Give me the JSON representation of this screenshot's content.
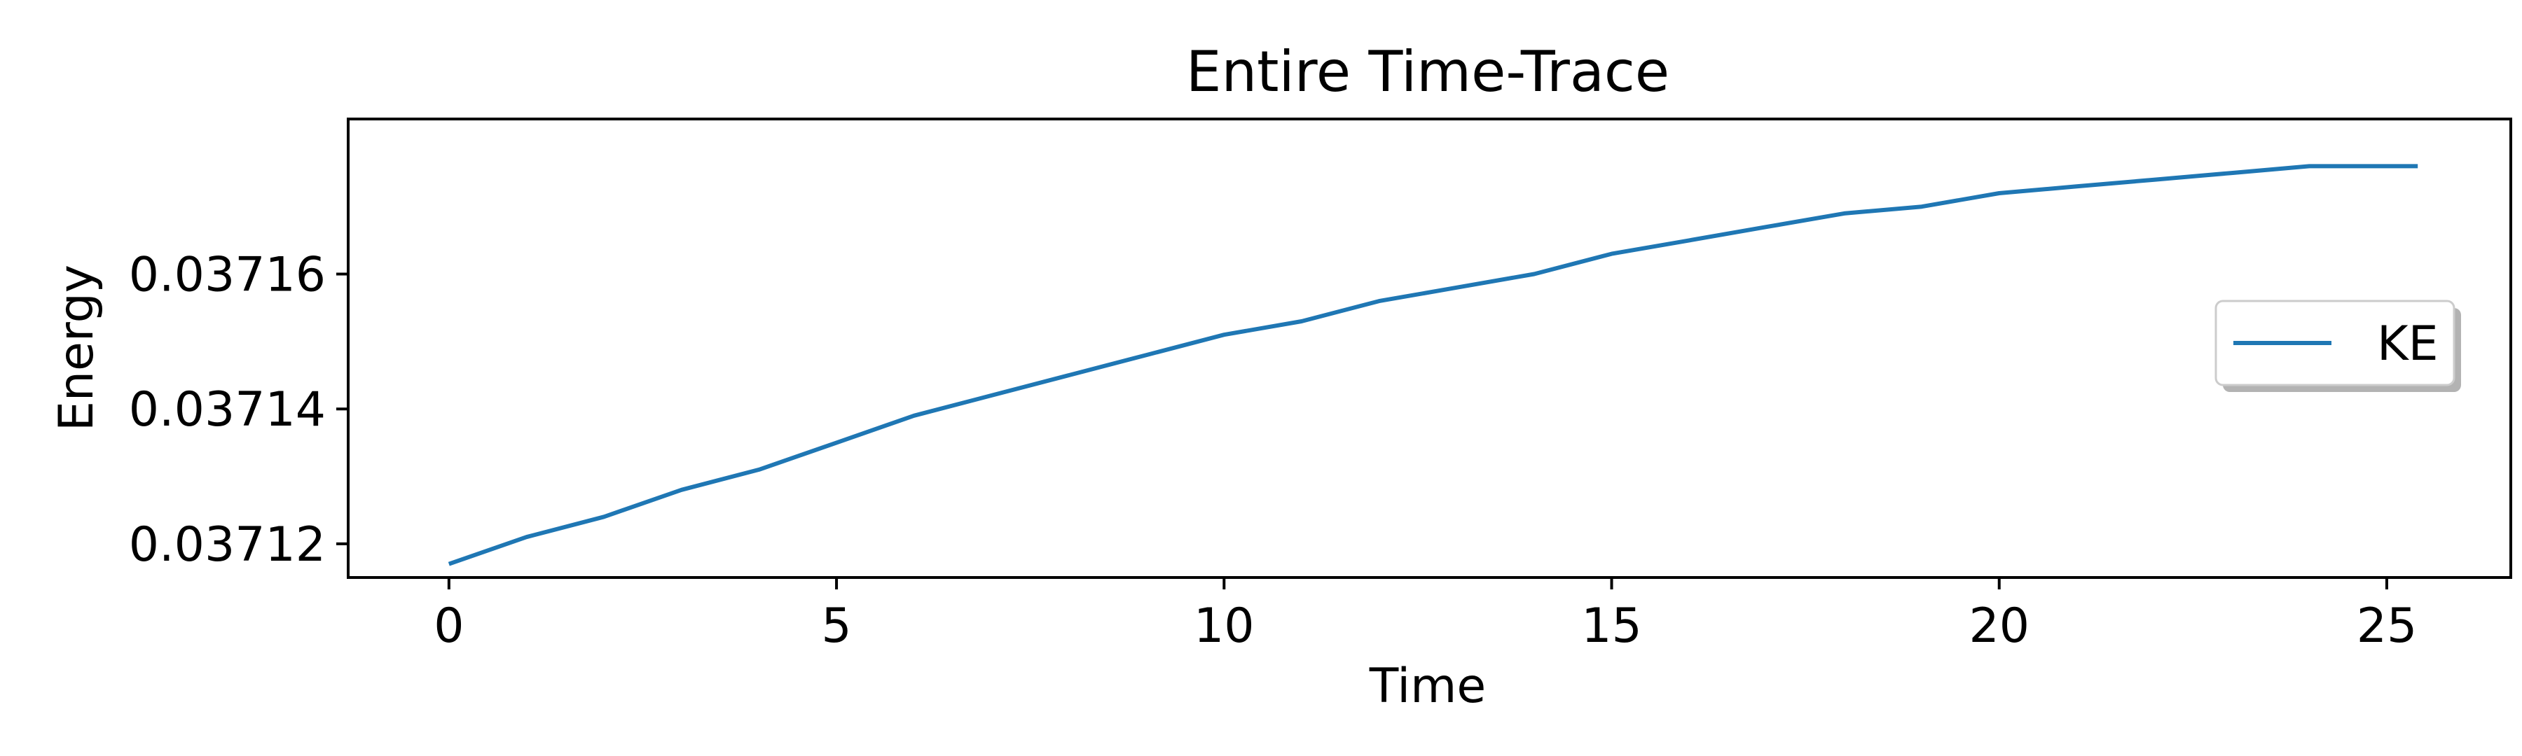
{
  "chart_data": {
    "type": "line",
    "title": "Entire Time-Trace",
    "xlabel": "Time",
    "ylabel": "Energy",
    "xlim": [
      -1.3,
      26.6
    ],
    "ylim": [
      0.037115,
      0.037183
    ],
    "x_ticks": [
      0,
      5,
      10,
      15,
      20,
      25
    ],
    "x_tick_labels": [
      "0",
      "5",
      "10",
      "15",
      "20",
      "25"
    ],
    "y_ticks": [
      0.03712,
      0.03714,
      0.03716
    ],
    "y_tick_labels": [
      "0.03712",
      "0.03714",
      "0.03716"
    ],
    "grid": false,
    "legend": {
      "position": "center-right",
      "entries": [
        "KE"
      ]
    },
    "series": [
      {
        "name": "KE",
        "color": "#1f77b4",
        "x": [
          0,
          1,
          2,
          3,
          4,
          5,
          6,
          7,
          8,
          9,
          10,
          11,
          12,
          13,
          14,
          15,
          16,
          17,
          18,
          19,
          20,
          21,
          22,
          23,
          24,
          25,
          25.4
        ],
        "y": [
          0.037117,
          0.037121,
          0.037124,
          0.037128,
          0.037131,
          0.037135,
          0.037139,
          0.037142,
          0.037145,
          0.037148,
          0.037151,
          0.037153,
          0.037156,
          0.037158,
          0.03716,
          0.037163,
          0.037165,
          0.037167,
          0.037169,
          0.03717,
          0.037172,
          0.037173,
          0.037174,
          0.037175,
          0.037176,
          0.037176,
          0.037176
        ]
      }
    ]
  }
}
